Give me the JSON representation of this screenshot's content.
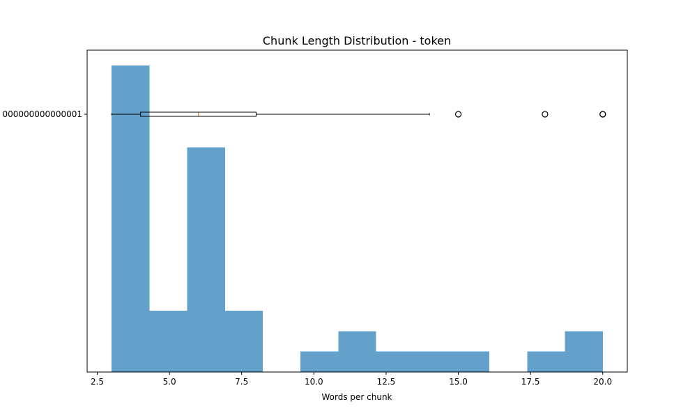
{
  "chart_data": {
    "type": "bar",
    "title": "Chunk Length Distribution - token",
    "xlabel": "Words per chunk",
    "ylabel": "",
    "xlim": [
      2.15,
      20.85
    ],
    "x_ticks": [
      2.5,
      5.0,
      7.5,
      10.0,
      12.5,
      15.0,
      17.5,
      20.0
    ],
    "x_tick_labels": [
      "2.5",
      "5.0",
      "7.5",
      "10.0",
      "12.5",
      "15.0",
      "17.5",
      "20.0"
    ],
    "y_tick_label": "000000000000001",
    "histogram": {
      "bin_edges": [
        3.0,
        4.308,
        5.615,
        6.923,
        8.231,
        9.538,
        10.846,
        12.154,
        13.462,
        14.769,
        16.077,
        17.385,
        18.692,
        20.0
      ],
      "counts": [
        15,
        3,
        11,
        3,
        0,
        1,
        2,
        1,
        1,
        1,
        0,
        1,
        2
      ],
      "color": "#63a1cb"
    },
    "boxplot": {
      "whisker_low": 3,
      "q1": 4,
      "median": 6,
      "q3": 8,
      "whisker_high": 14,
      "outliers": [
        15,
        18,
        20,
        20
      ],
      "median_color": "#ff7f0e"
    }
  }
}
